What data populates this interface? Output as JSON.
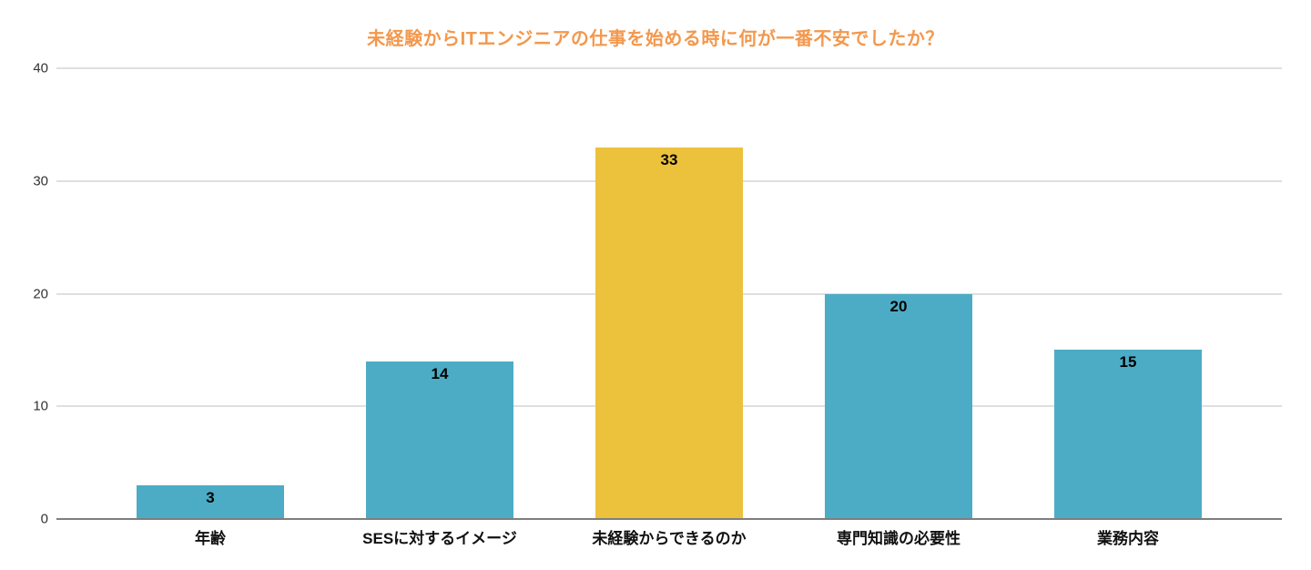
{
  "page": {
    "background": "#FFFFFF"
  },
  "chart_data": {
    "type": "bar",
    "title": "未経験からITエンジニアの仕事を始める時に何が一番不安でしたか？",
    "categories": [
      "年齢",
      "SESに対するイメージ",
      "未経験からできるのか",
      "専門知識の必要性",
      "業務内容"
    ],
    "values": [
      3,
      14,
      33,
      20,
      15
    ],
    "bar_colors": [
      "#4DACC5",
      "#4DACC5",
      "#ECC13C",
      "#4DACC5",
      "#4DACC5"
    ],
    "highlight_index": 2,
    "y_ticks": [
      0,
      10,
      20,
      30,
      40
    ],
    "ylim": [
      0,
      40
    ],
    "xlabel": "",
    "ylabel": "",
    "grid": true,
    "legend": "none",
    "value_label_position": "inside-top",
    "colors": {
      "title": "#F3984D",
      "bar_default": "#4DACC5",
      "bar_highlight": "#ECC13C",
      "gridline": "#DFDFDF",
      "baseline": "#7E7E7E",
      "value_label": "#000000",
      "category_label": "#111111",
      "tick_label": "#333333",
      "background": "#FFFFFF"
    }
  }
}
